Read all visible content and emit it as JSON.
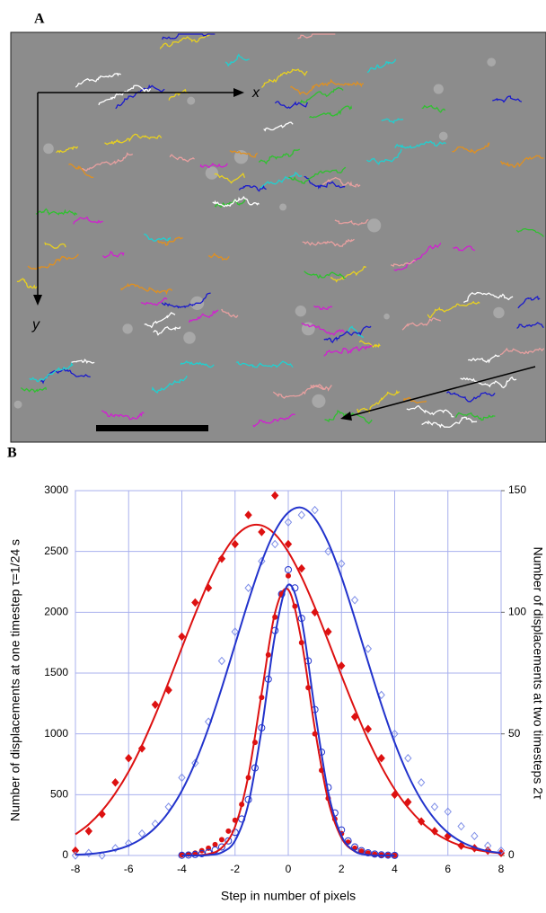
{
  "panel_a": {
    "label": "A",
    "x_axis": "x",
    "y_axis": "y"
  },
  "panel_b": {
    "label": "B"
  },
  "chart_data": {
    "type": "line",
    "x_label": "Step in number of pixels",
    "y_label": "Number of displacements at one timestep τ=1/24 s",
    "y2_label": "Number of displacements at two timesteps 2τ",
    "xlim": [
      -8,
      8
    ],
    "xticks": [
      -8,
      -6,
      -4,
      -2,
      0,
      2,
      4,
      6,
      8
    ],
    "ylim": [
      0,
      3000
    ],
    "yticks": [
      0,
      500,
      1000,
      1500,
      2000,
      2500,
      3000
    ],
    "y2lim": [
      0,
      150
    ],
    "y2ticks": [
      0,
      50,
      100,
      150
    ],
    "grid": true,
    "series": [
      {
        "mode": "markers",
        "marker": "dot",
        "color": "#dd1111",
        "axis": "y",
        "x": [
          -4,
          -3.75,
          -3.5,
          -3.25,
          -3,
          -2.75,
          -2.5,
          -2.25,
          -2,
          -1.75,
          -1.5,
          -1.25,
          -1,
          -0.75,
          -0.5,
          -0.25,
          0,
          0.25,
          0.5,
          0.75,
          1,
          1.25,
          1.5,
          1.75,
          2,
          2.25,
          2.5,
          2.75,
          3,
          3.25,
          3.5,
          3.75,
          4
        ],
        "values": [
          5,
          10,
          20,
          40,
          60,
          90,
          130,
          200,
          290,
          420,
          640,
          930,
          1300,
          1650,
          1960,
          2150,
          2300,
          2050,
          1750,
          1380,
          1000,
          700,
          470,
          300,
          180,
          110,
          60,
          35,
          20,
          10,
          5,
          3,
          1
        ]
      },
      {
        "mode": "markers",
        "marker": "circle",
        "color": "#2233cc",
        "axis": "y",
        "x": [
          -4,
          -3.75,
          -3.5,
          -3.25,
          -3,
          -2.75,
          -2.5,
          -2.25,
          -2,
          -1.75,
          -1.5,
          -1.25,
          -1,
          -0.75,
          -0.5,
          -0.25,
          0,
          0.25,
          0.5,
          0.75,
          1,
          1.25,
          1.5,
          1.75,
          2,
          2.25,
          2.5,
          2.75,
          3,
          3.25,
          3.5,
          3.75,
          4
        ],
        "values": [
          2,
          4,
          8,
          15,
          25,
          45,
          70,
          120,
          190,
          300,
          460,
          720,
          1050,
          1450,
          1850,
          2150,
          2350,
          2200,
          1950,
          1600,
          1200,
          850,
          560,
          350,
          210,
          120,
          70,
          40,
          22,
          12,
          6,
          3,
          1
        ]
      },
      {
        "mode": "markers",
        "marker": "diamond",
        "color": "#dd1111",
        "axis": "y2",
        "x": [
          -8,
          -7.5,
          -7,
          -6.5,
          -6,
          -5.5,
          -5,
          -4.5,
          -4,
          -3.5,
          -3,
          -2.5,
          -2,
          -1.5,
          -1,
          -0.5,
          0,
          0.5,
          1,
          1.5,
          2,
          2.5,
          3,
          3.5,
          4,
          4.5,
          5,
          5.5,
          6,
          6.5,
          7,
          7.5,
          8
        ],
        "values": [
          2,
          10,
          17,
          30,
          40,
          44,
          62,
          68,
          90,
          104,
          110,
          122,
          128,
          140,
          133,
          148,
          128,
          118,
          100,
          92,
          78,
          57,
          52,
          40,
          25,
          22,
          14,
          10,
          8,
          4,
          3,
          2,
          1
        ]
      },
      {
        "mode": "markers",
        "marker": "open-diamond",
        "color": "#7f8fe8",
        "axis": "y2",
        "x": [
          -8,
          -7.5,
          -7,
          -6.5,
          -6,
          -5.5,
          -5,
          -4.5,
          -4,
          -3.5,
          -3,
          -2.5,
          -2,
          -1.5,
          -1,
          -0.5,
          0,
          0.5,
          1,
          1.5,
          2,
          2.5,
          3,
          3.5,
          4,
          4.5,
          5,
          5.5,
          6,
          6.5,
          7,
          7.5,
          8
        ],
        "values": [
          0,
          1,
          0,
          3,
          5,
          9,
          13,
          20,
          32,
          38,
          55,
          80,
          92,
          110,
          121,
          128,
          137,
          140,
          142,
          125,
          120,
          105,
          85,
          66,
          50,
          40,
          30,
          20,
          18,
          12,
          8,
          4,
          2
        ]
      },
      {
        "mode": "line",
        "color": "#dd1111",
        "axis": "y",
        "x": [
          -4,
          -3.5,
          -3,
          -2.5,
          -2,
          -1.5,
          -1,
          -0.5,
          0,
          0.5,
          1,
          1.5,
          2,
          2.5,
          3,
          3.5,
          4
        ],
        "values": [
          0,
          2,
          12,
          63,
          237,
          656,
          1334,
          1993,
          2186,
          1762,
          1042,
          453,
          145,
          34,
          6,
          1,
          0
        ]
      },
      {
        "mode": "line",
        "color": "#2233cc",
        "axis": "y",
        "x": [
          -4,
          -3.5,
          -3,
          -2.5,
          -2,
          -1.5,
          -1,
          -0.5,
          0,
          0.5,
          1,
          1.5,
          2,
          2.5,
          3,
          3.5,
          4
        ],
        "values": [
          0,
          0,
          4,
          25,
          122,
          424,
          1040,
          1809,
          2226,
          1938,
          1194,
          521,
          161,
          35,
          5,
          0,
          0
        ]
      },
      {
        "mode": "line",
        "color": "#dd1111",
        "axis": "y2",
        "x": [
          -8,
          -7.5,
          -7,
          -6.5,
          -6,
          -5.5,
          -5,
          -4.5,
          -4,
          -3.5,
          -3,
          -2.5,
          -2,
          -1.5,
          -1,
          -0.5,
          0,
          0.5,
          1,
          1.5,
          2,
          2.5,
          3,
          3.5,
          4,
          4.5,
          5,
          5.5,
          6,
          6.5,
          7,
          7.5,
          8
        ],
        "values": [
          8.7,
          12.8,
          18.4,
          25.6,
          34.5,
          45.3,
          57.7,
          71.2,
          85.4,
          99.3,
          112.2,
          123,
          131,
          135.3,
          135.7,
          132.1,
          124.8,
          114.5,
          102,
          88.2,
          74,
          60.3,
          47.6,
          36.6,
          27.2,
          19.7,
          13.8,
          9.4,
          6.2,
          4,
          2.5,
          1.5,
          0.9
        ]
      },
      {
        "mode": "line",
        "color": "#2233cc",
        "axis": "y2",
        "x": [
          -8,
          -7.5,
          -7,
          -6.5,
          -6,
          -5.5,
          -5,
          -4.5,
          -4,
          -3.5,
          -3,
          -2.5,
          -2,
          -1.5,
          -1,
          -0.5,
          0,
          0.5,
          1,
          1.5,
          2,
          2.5,
          3,
          3.5,
          4,
          4.5,
          5,
          5.5,
          6,
          6.5,
          7,
          7.5,
          8
        ],
        "values": [
          0.3,
          0.6,
          1.2,
          2.3,
          4.1,
          7,
          11.4,
          17.8,
          26.6,
          38.2,
          52.4,
          68.9,
          86.7,
          104.5,
          120.7,
          133.3,
          141,
          143,
          138.6,
          128.7,
          114.5,
          97.5,
          79.5,
          62.1,
          46.4,
          33.2,
          22.8,
          15,
          9.4,
          5.7,
          3.3,
          1.8,
          1
        ]
      }
    ]
  }
}
